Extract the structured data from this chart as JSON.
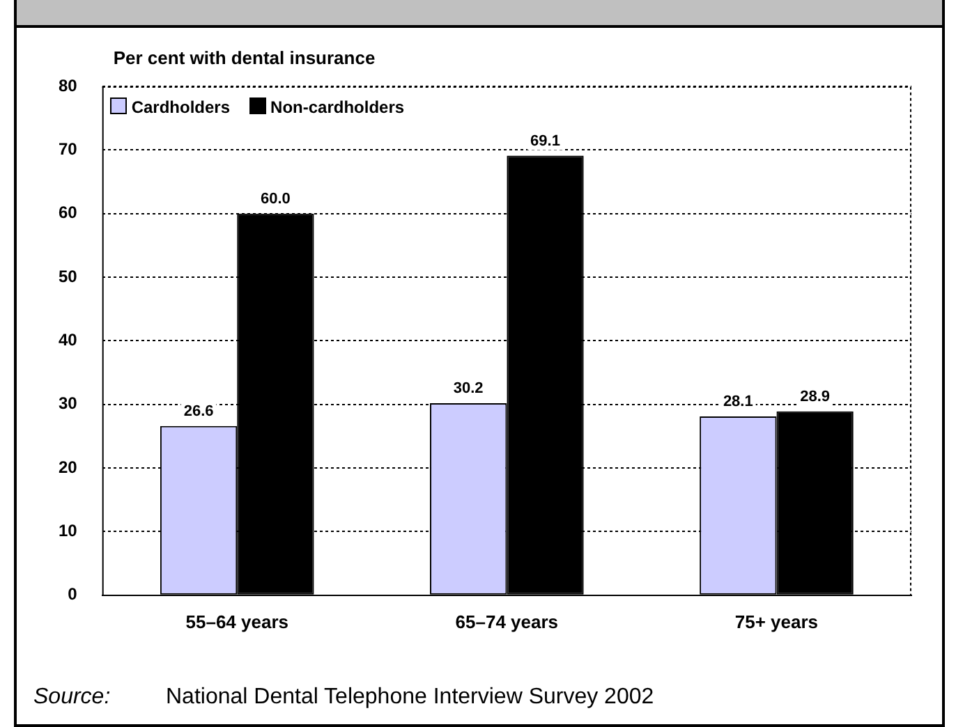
{
  "chart_data": {
    "type": "bar",
    "title": "Per cent with dental insurance",
    "categories": [
      "55–64 years",
      "65–74 years",
      "75+ years"
    ],
    "series": [
      {
        "name": "Cardholders",
        "color": "#ccccff",
        "values": [
          26.6,
          30.2,
          28.1
        ]
      },
      {
        "name": "Non-cardholders",
        "color": "#000000",
        "values": [
          60.0,
          69.1,
          28.9
        ]
      }
    ],
    "value_labels": [
      [
        "26.6",
        "30.2",
        "28.1"
      ],
      [
        "60.0",
        "69.1",
        "28.9"
      ]
    ],
    "ylim": [
      0,
      80
    ],
    "yticks": [
      0,
      10,
      20,
      30,
      40,
      50,
      60,
      70,
      80
    ],
    "grid": "y",
    "line_style": "dotted",
    "legend": "top left",
    "annotations": [
      "Source:",
      "National Dental Telephone Interview Survey 2002"
    ]
  }
}
